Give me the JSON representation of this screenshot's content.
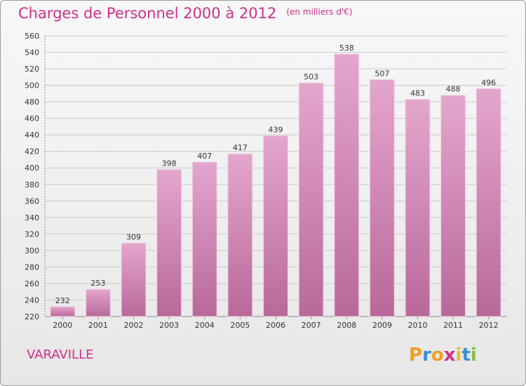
{
  "title": "Charges de Personnel 2000 à 2012",
  "subtitle": "(en milliers d'€)",
  "place": "VARAVILLE",
  "logo": {
    "letters": [
      "P",
      "r",
      "o",
      "x",
      "i",
      "t",
      "i"
    ],
    "colors": [
      "#f0a020",
      "#3a8fd8",
      "#f0a020",
      "#d0308a",
      "#f0c020",
      "#3a8fd8",
      "#88c040"
    ]
  },
  "colors": {
    "accent": "#d0308a",
    "bar_top": "#e4a6cd",
    "bar_bottom": "#b8699a"
  },
  "chart_data": {
    "type": "bar",
    "title": "Charges de Personnel 2000 à 2012",
    "subtitle": "(en milliers d'€)",
    "categories": [
      "2000",
      "2001",
      "2002",
      "2003",
      "2004",
      "2005",
      "2006",
      "2007",
      "2008",
      "2009",
      "2010",
      "2011",
      "2012"
    ],
    "values": [
      232,
      253,
      309,
      398,
      407,
      417,
      439,
      503,
      538,
      507,
      483,
      488,
      496
    ],
    "ylim": [
      220,
      560
    ],
    "yticks": [
      220,
      240,
      260,
      280,
      300,
      320,
      340,
      360,
      380,
      400,
      420,
      440,
      460,
      480,
      500,
      520,
      540,
      560
    ],
    "grid": true,
    "legend": "none"
  }
}
